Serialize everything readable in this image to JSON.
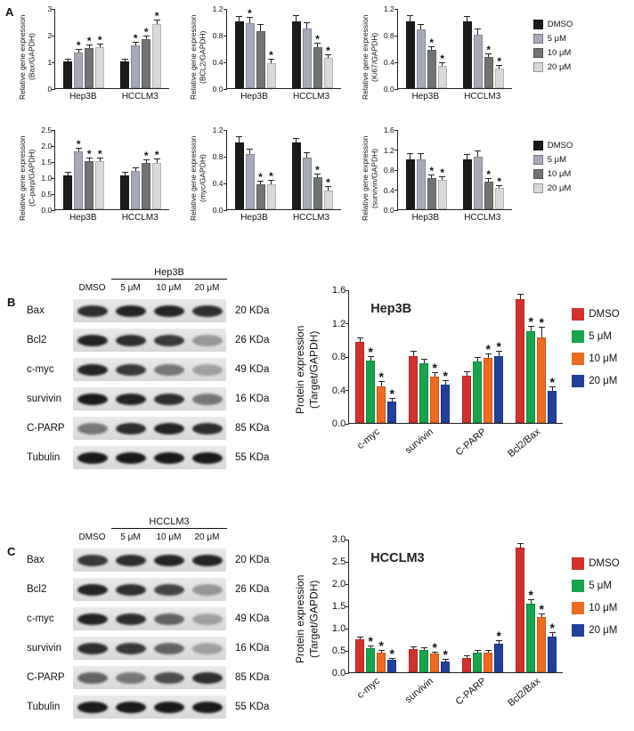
{
  "panels": {
    "a": {
      "label": "A"
    },
    "b": {
      "label": "B"
    },
    "c": {
      "label": "C"
    }
  },
  "legend_gene": {
    "position": "right",
    "items": [
      {
        "label": "DMSO",
        "color": "#1b1b1b"
      },
      {
        "label": "5 μM",
        "color": "#a6aab8"
      },
      {
        "label": "10 μM",
        "color": "#737373"
      },
      {
        "label": "20 μM",
        "color": "#d9d9d9"
      }
    ]
  },
  "legend_protein": {
    "position": "right",
    "items": [
      {
        "label": "DMSO",
        "color": "#d2312e"
      },
      {
        "label": "5 μM",
        "color": "#17a44c"
      },
      {
        "label": "10 μM",
        "color": "#f06a21"
      },
      {
        "label": "20 μM",
        "color": "#21409a"
      }
    ]
  },
  "chart_data": [
    {
      "type": "bar",
      "panel": "A",
      "ylabel": "Relative gene expression\n(Bax/GAPDH)",
      "categories": [
        "Hep3B",
        "HCCLM3"
      ],
      "ylim": [
        0,
        3
      ],
      "yticks": [
        "0",
        "1",
        "2",
        "3"
      ],
      "grid": false,
      "series": [
        {
          "name": "DMSO",
          "values": [
            1.0,
            1.0
          ],
          "errors": [
            0.06,
            0.08
          ],
          "sig": [
            false,
            false
          ]
        },
        {
          "name": "5 μM",
          "values": [
            1.35,
            1.6
          ],
          "errors": [
            0.1,
            0.1
          ],
          "sig": [
            true,
            true
          ]
        },
        {
          "name": "10 μM",
          "values": [
            1.5,
            1.85
          ],
          "errors": [
            0.1,
            0.1
          ],
          "sig": [
            true,
            true
          ]
        },
        {
          "name": "20 μM",
          "values": [
            1.55,
            2.4
          ],
          "errors": [
            0.08,
            0.12
          ],
          "sig": [
            true,
            true
          ]
        }
      ]
    },
    {
      "type": "bar",
      "panel": "A",
      "ylabel": "Relative gene expression\n(BCL2/GAPDH)",
      "categories": [
        "Hep3B",
        "HCCLM3"
      ],
      "ylim": [
        0,
        1.2
      ],
      "yticks": [
        "0.0",
        "0.4",
        "0.8",
        "1.2"
      ],
      "grid": false,
      "series": [
        {
          "name": "DMSO",
          "values": [
            1.0,
            1.0
          ],
          "errors": [
            0.07,
            0.08
          ],
          "sig": [
            false,
            false
          ]
        },
        {
          "name": "5 μM",
          "values": [
            0.97,
            0.9
          ],
          "errors": [
            0.08,
            0.07
          ],
          "sig": [
            true,
            false
          ]
        },
        {
          "name": "10 μM",
          "values": [
            0.86,
            0.62
          ],
          "errors": [
            0.09,
            0.05
          ],
          "sig": [
            false,
            true
          ]
        },
        {
          "name": "20 μM",
          "values": [
            0.38,
            0.45
          ],
          "errors": [
            0.05,
            0.05
          ],
          "sig": [
            true,
            true
          ]
        }
      ]
    },
    {
      "type": "bar",
      "panel": "A",
      "ylabel": "Relative gene expression\n(Ki67/GAPDH)",
      "categories": [
        "Hep3B",
        "HCCLM3"
      ],
      "ylim": [
        0,
        1.2
      ],
      "yticks": [
        "0.0",
        "0.4",
        "0.8",
        "1.2"
      ],
      "grid": false,
      "series": [
        {
          "name": "DMSO",
          "values": [
            1.0,
            1.0
          ],
          "errors": [
            0.08,
            0.07
          ],
          "sig": [
            false,
            false
          ]
        },
        {
          "name": "5 μM",
          "values": [
            0.88,
            0.8
          ],
          "errors": [
            0.07,
            0.08
          ],
          "sig": [
            false,
            false
          ]
        },
        {
          "name": "10 μM",
          "values": [
            0.57,
            0.47
          ],
          "errors": [
            0.05,
            0.04
          ],
          "sig": [
            true,
            true
          ]
        },
        {
          "name": "20 μM",
          "values": [
            0.33,
            0.3
          ],
          "errors": [
            0.04,
            0.04
          ],
          "sig": [
            true,
            true
          ]
        }
      ]
    },
    {
      "type": "bar",
      "panel": "A",
      "ylabel": "Relative gene expression\n(C-parp/GAPDH)",
      "categories": [
        "Hep3B",
        "HCCLM3"
      ],
      "ylim": [
        0,
        2.5
      ],
      "yticks": [
        "0.0",
        "0.5",
        "1.0",
        "1.5",
        "2.0",
        "2.5"
      ],
      "grid": false,
      "series": [
        {
          "name": "DMSO",
          "values": [
            1.05,
            1.05
          ],
          "errors": [
            0.08,
            0.08
          ],
          "sig": [
            false,
            false
          ]
        },
        {
          "name": "5 μM",
          "values": [
            1.8,
            1.2
          ],
          "errors": [
            0.1,
            0.08
          ],
          "sig": [
            true,
            false
          ]
        },
        {
          "name": "10 μM",
          "values": [
            1.5,
            1.45
          ],
          "errors": [
            0.08,
            0.08
          ],
          "sig": [
            true,
            true
          ]
        },
        {
          "name": "20 μM",
          "values": [
            1.5,
            1.45
          ],
          "errors": [
            0.07,
            0.1
          ],
          "sig": [
            true,
            true
          ]
        }
      ]
    },
    {
      "type": "bar",
      "panel": "A",
      "ylabel": "Relative gene expression\n(myc/GAPDH)",
      "categories": [
        "Hep3B",
        "HCCLM3"
      ],
      "ylim": [
        0,
        1.2
      ],
      "yticks": [
        "0.0",
        "0.4",
        "0.8",
        "1.2"
      ],
      "grid": false,
      "series": [
        {
          "name": "DMSO",
          "values": [
            1.0,
            1.0
          ],
          "errors": [
            0.08,
            0.05
          ],
          "sig": [
            false,
            false
          ]
        },
        {
          "name": "5 μM",
          "values": [
            0.83,
            0.78
          ],
          "errors": [
            0.07,
            0.06
          ],
          "sig": [
            false,
            false
          ]
        },
        {
          "name": "10 μM",
          "values": [
            0.38,
            0.48
          ],
          "errors": [
            0.04,
            0.04
          ],
          "sig": [
            true,
            true
          ]
        },
        {
          "name": "20 μM",
          "values": [
            0.38,
            0.28
          ],
          "errors": [
            0.05,
            0.05
          ],
          "sig": [
            true,
            true
          ]
        }
      ]
    },
    {
      "type": "bar",
      "panel": "A",
      "ylabel": "Relative gene expression\n(survivin/GAPDH)",
      "categories": [
        "Hep3B",
        "HCCLM3"
      ],
      "ylim": [
        0,
        1.6
      ],
      "yticks": [
        "0.0",
        "0.4",
        "0.8",
        "1.2",
        "1.6"
      ],
      "grid": false,
      "series": [
        {
          "name": "DMSO",
          "values": [
            1.0,
            1.0
          ],
          "errors": [
            0.1,
            0.08
          ],
          "sig": [
            false,
            false
          ]
        },
        {
          "name": "5 μM",
          "values": [
            1.0,
            1.05
          ],
          "errors": [
            0.1,
            0.1
          ],
          "sig": [
            false,
            false
          ]
        },
        {
          "name": "10 μM",
          "values": [
            0.62,
            0.55
          ],
          "errors": [
            0.06,
            0.05
          ],
          "sig": [
            true,
            true
          ]
        },
        {
          "name": "20 μM",
          "values": [
            0.58,
            0.42
          ],
          "errors": [
            0.06,
            0.05
          ],
          "sig": [
            true,
            true
          ]
        }
      ]
    },
    {
      "type": "bar",
      "panel": "B",
      "title": "Hep3B",
      "ylabel": "Protein expression\n(Target/GAPDH)",
      "categories": [
        "c-myc",
        "survivin",
        "C-PARP",
        "Bcl2/Bax"
      ],
      "ylim": [
        0,
        1.6
      ],
      "yticks": [
        "0.0",
        "0.4",
        "0.8",
        "1.2",
        "1.6"
      ],
      "grid": false,
      "legend_position": "right",
      "xlabel_rotation": 40,
      "series": [
        {
          "name": "DMSO",
          "values": [
            0.97,
            0.8,
            0.57,
            1.48
          ],
          "errors": [
            0.04,
            0.05,
            0.04,
            0.06
          ],
          "sig": [
            false,
            false,
            false,
            false
          ]
        },
        {
          "name": "5 μM",
          "values": [
            0.75,
            0.72,
            0.74,
            1.1
          ],
          "errors": [
            0.04,
            0.04,
            0.04,
            0.05
          ],
          "sig": [
            true,
            false,
            false,
            true
          ]
        },
        {
          "name": "10 μM",
          "values": [
            0.44,
            0.56,
            0.78,
            1.02
          ],
          "errors": [
            0.05,
            0.04,
            0.04,
            0.12
          ],
          "sig": [
            true,
            true,
            true,
            true
          ]
        },
        {
          "name": "20 μM",
          "values": [
            0.26,
            0.46,
            0.8,
            0.38
          ],
          "errors": [
            0.03,
            0.04,
            0.05,
            0.05
          ],
          "sig": [
            true,
            true,
            true,
            true
          ]
        }
      ]
    },
    {
      "type": "bar",
      "panel": "C",
      "title": "HCCLM3",
      "ylabel": "Protein expression\n(Target/GAPDH)",
      "categories": [
        "c-myc",
        "survivin",
        "C-PARP",
        "Bcl2/Bax"
      ],
      "ylim": [
        0,
        3
      ],
      "yticks": [
        "0.0",
        "0.5",
        "1.0",
        "1.5",
        "2.0",
        "2.5",
        "3.0"
      ],
      "grid": false,
      "legend_position": "right",
      "xlabel_rotation": 40,
      "series": [
        {
          "name": "DMSO",
          "values": [
            0.75,
            0.52,
            0.33,
            2.8
          ],
          "errors": [
            0.04,
            0.04,
            0.03,
            0.08
          ],
          "sig": [
            false,
            false,
            false,
            false
          ]
        },
        {
          "name": "5 μM",
          "values": [
            0.55,
            0.5,
            0.45,
            1.55
          ],
          "errors": [
            0.04,
            0.04,
            0.04,
            0.08
          ],
          "sig": [
            true,
            false,
            false,
            true
          ]
        },
        {
          "name": "10 μM",
          "values": [
            0.45,
            0.42,
            0.45,
            1.25
          ],
          "errors": [
            0.04,
            0.03,
            0.04,
            0.06
          ],
          "sig": [
            true,
            true,
            false,
            true
          ]
        },
        {
          "name": "20 μM",
          "values": [
            0.28,
            0.25,
            0.65,
            0.8
          ],
          "errors": [
            0.03,
            0.03,
            0.05,
            0.08
          ],
          "sig": [
            true,
            true,
            true,
            true
          ]
        }
      ]
    }
  ],
  "blots": {
    "b": {
      "cell_line": "Hep3B",
      "lanes": [
        "DMSO",
        "5 μM",
        "10 μM",
        "20 μM"
      ],
      "rows": [
        {
          "protein": "Bax",
          "size": "20 KDa",
          "intensities": [
            0.85,
            0.9,
            0.9,
            0.85
          ]
        },
        {
          "protein": "Bcl2",
          "size": "26 KDa",
          "intensities": [
            0.9,
            0.85,
            0.8,
            0.35
          ]
        },
        {
          "protein": "c-myc",
          "size": "49 KDa",
          "intensities": [
            0.9,
            0.8,
            0.5,
            0.3
          ]
        },
        {
          "protein": "survivin",
          "size": "16 KDa",
          "intensities": [
            0.95,
            0.9,
            0.85,
            0.5
          ]
        },
        {
          "protein": "C-PARP",
          "size": "85 KDa",
          "intensities": [
            0.5,
            0.85,
            0.9,
            0.85
          ]
        },
        {
          "protein": "Tubulin",
          "size": "55 KDa",
          "intensities": [
            0.95,
            0.95,
            0.95,
            0.95
          ]
        }
      ]
    },
    "c": {
      "cell_line": "HCCLM3",
      "lanes": [
        "DMSO",
        "5 μM",
        "10 μM",
        "20 μM"
      ],
      "rows": [
        {
          "protein": "Bax",
          "size": "20 KDa",
          "intensities": [
            0.8,
            0.85,
            0.9,
            0.9
          ]
        },
        {
          "protein": "Bcl2",
          "size": "26 KDa",
          "intensities": [
            0.9,
            0.85,
            0.75,
            0.35
          ]
        },
        {
          "protein": "c-myc",
          "size": "49 KDa",
          "intensities": [
            0.9,
            0.85,
            0.6,
            0.3
          ]
        },
        {
          "protein": "survivin",
          "size": "16 KDa",
          "intensities": [
            0.85,
            0.8,
            0.6,
            0.3
          ]
        },
        {
          "protein": "C-PARP",
          "size": "85 KDa",
          "intensities": [
            0.6,
            0.5,
            0.7,
            0.85
          ]
        },
        {
          "protein": "Tubulin",
          "size": "55 KDa",
          "intensities": [
            0.95,
            0.95,
            0.95,
            0.95
          ]
        }
      ]
    }
  }
}
